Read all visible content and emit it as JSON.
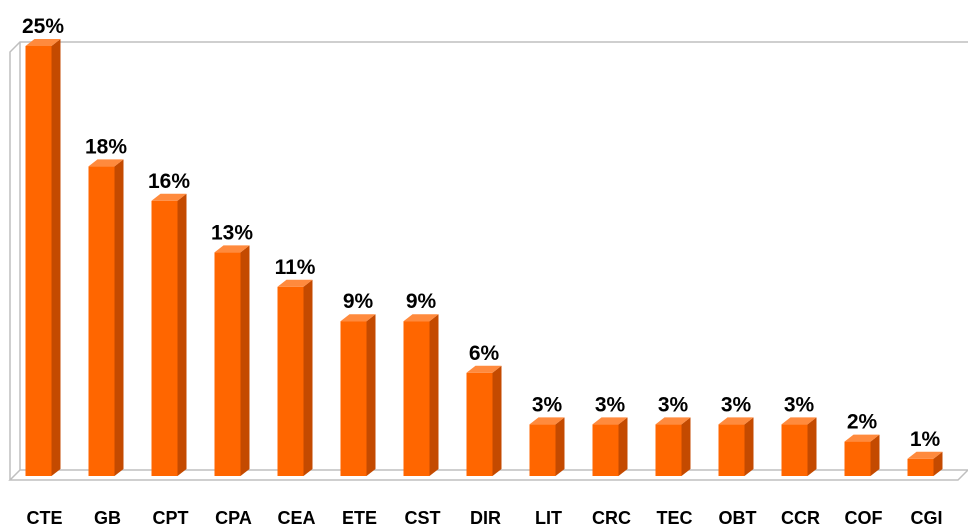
{
  "chart_data": {
    "type": "bar3d",
    "categories": [
      "CTE",
      "GB",
      "CPT",
      "CPA",
      "CEA",
      "ETE",
      "CST",
      "DIR",
      "LIT",
      "CRC",
      "TEC",
      "OBT",
      "CCR",
      "COF",
      "CGI"
    ],
    "values": [
      25,
      18,
      16,
      13,
      11,
      9,
      9,
      6,
      3,
      3,
      3,
      3,
      3,
      2,
      1
    ],
    "value_labels": [
      "25%",
      "18%",
      "16%",
      "13%",
      "11%",
      "9%",
      "9%",
      "6%",
      "3%",
      "3%",
      "3%",
      "3%",
      "3%",
      "2%",
      "1%"
    ],
    "color": "#ff6600",
    "side_color": "#c44a00",
    "top_color": "#ff8a3d"
  }
}
